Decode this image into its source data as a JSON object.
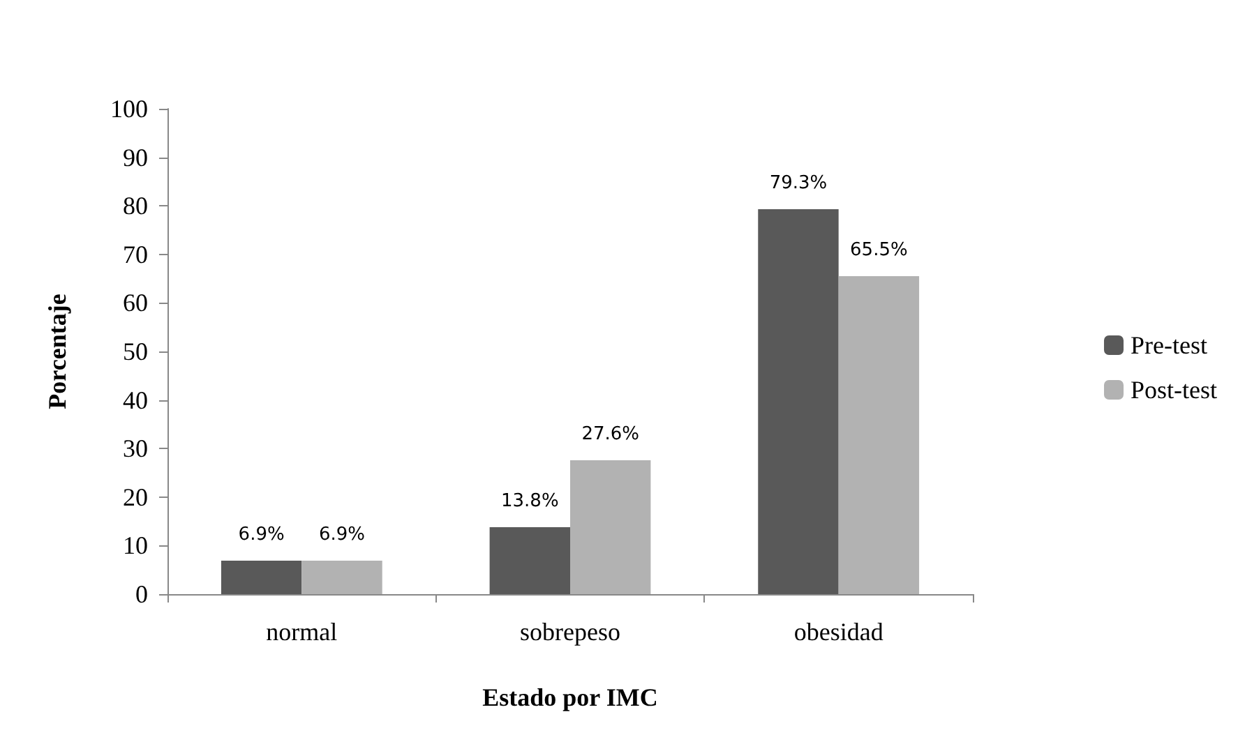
{
  "chart_data": {
    "type": "bar",
    "xlabel": "Estado por IMC",
    "ylabel": "Porcentaje",
    "categories": [
      "normal",
      "sobrepeso",
      "obesidad"
    ],
    "series": [
      {
        "name": "Pre-test",
        "color": "#595959",
        "values": [
          6.9,
          13.8,
          79.3
        ],
        "value_labels": [
          "6.9%",
          "13.8%",
          "79.3%"
        ]
      },
      {
        "name": "Post-test",
        "color": "#b2b2b2",
        "values": [
          6.9,
          27.6,
          65.5
        ],
        "value_labels": [
          "6.9%",
          "27.6%",
          "65.5%"
        ]
      }
    ],
    "ylim": [
      0,
      100
    ],
    "yticks": [
      0,
      10,
      20,
      30,
      40,
      50,
      60,
      70,
      80,
      90,
      100
    ],
    "legend": "right"
  }
}
